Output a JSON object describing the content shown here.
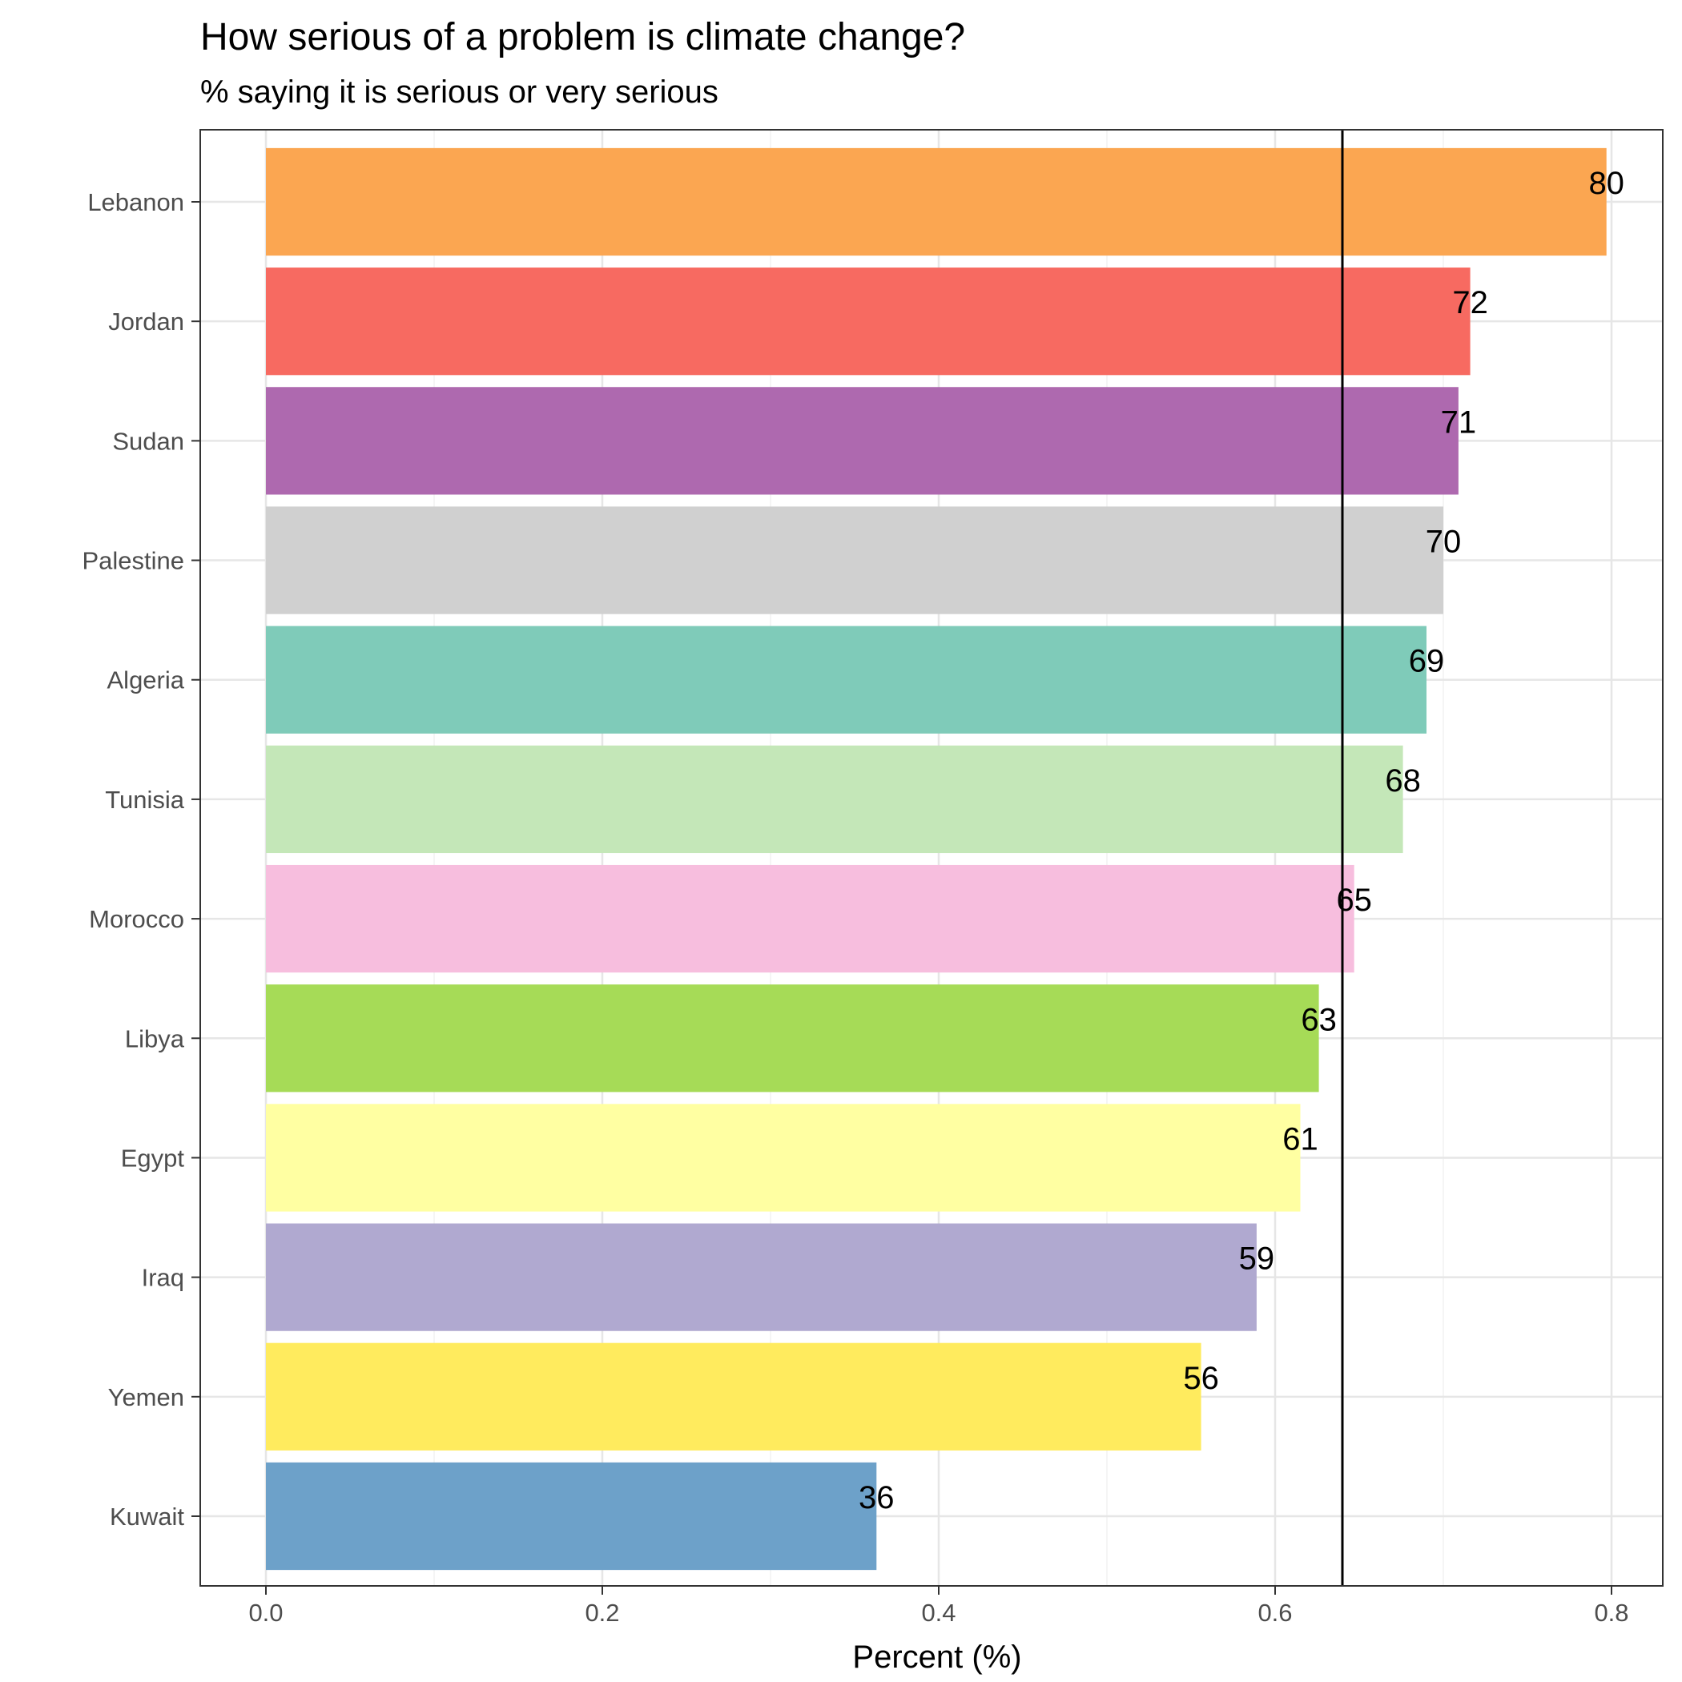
{
  "chart_data": {
    "type": "bar",
    "orientation": "horizontal",
    "title": "How serious of a problem is climate change?",
    "subtitle": "% saying it is serious or very serious",
    "xlabel": "Percent (%)",
    "ylabel": "",
    "xlim": [
      0,
      0.8
    ],
    "x_ticks": [
      "0.0",
      "0.2",
      "0.4",
      "0.6",
      "0.8"
    ],
    "x_tick_values": [
      0,
      0.2,
      0.4,
      0.6,
      0.8
    ],
    "grid": true,
    "legend": "none",
    "reference_line": {
      "x": 0.64,
      "color": "#000000"
    },
    "categories": [
      "Lebanon",
      "Jordan",
      "Sudan",
      "Palestine",
      "Algeria",
      "Tunisia",
      "Morocco",
      "Libya",
      "Egypt",
      "Iraq",
      "Yemen",
      "Kuwait"
    ],
    "values": [
      0.797,
      0.716,
      0.709,
      0.7,
      0.69,
      0.676,
      0.647,
      0.626,
      0.615,
      0.589,
      0.556,
      0.363
    ],
    "labels": [
      "80",
      "72",
      "71",
      "70",
      "69",
      "68",
      "65",
      "63",
      "61",
      "59",
      "56",
      "36"
    ],
    "colors": [
      "#FBA651",
      "#F76A61",
      "#AE69AF",
      "#D0D0D0",
      "#7FCBB9",
      "#C4E7B8",
      "#F7BEDE",
      "#A6DB57",
      "#FFFFA2",
      "#B0A9D0",
      "#FFEB5E",
      "#6DA1C9"
    ]
  }
}
